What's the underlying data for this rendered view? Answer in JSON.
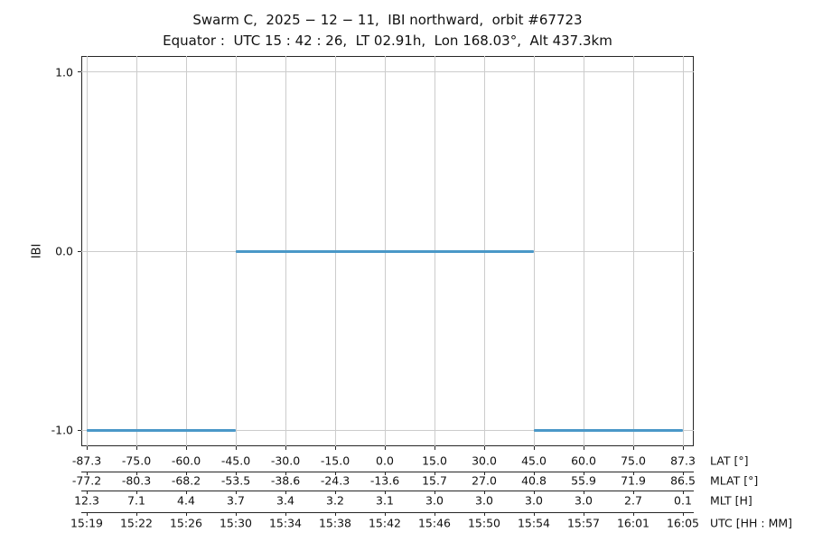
{
  "colors": {
    "line": "#4a98c8",
    "grid": "#cccccc",
    "spine": "#262626",
    "text": "#111111",
    "background": "#ffffff"
  },
  "chart_data": {
    "type": "line",
    "title": "Swarm C,  2025 − 12 − 11,  IBI northward,  orbit #67723",
    "subtitle": "Equator :  UTC 15 : 42 : 26,  LT 02.91h,  Lon 168.03°,  Alt 437.3km",
    "ylabel": "IBI",
    "ylim": [
      -1.1,
      1.1
    ],
    "grid": true,
    "legend": false,
    "yticks": [
      {
        "label": "1.0",
        "value": 1
      },
      {
        "label": "0.0",
        "value": 0
      },
      {
        "label": "-1.0",
        "value": -1
      }
    ],
    "x_axis_rows": [
      {
        "name": "LAT [°]",
        "ticks": [
          "-87.3",
          "-75.0",
          "-60.0",
          "-45.0",
          "-30.0",
          "-15.0",
          "0.0",
          "15.0",
          "30.0",
          "45.0",
          "60.0",
          "75.0",
          "87.3"
        ]
      },
      {
        "name": "MLAT [°]",
        "ticks": [
          "-77.2",
          "-80.3",
          "-68.2",
          "-53.5",
          "-38.6",
          "-24.3",
          "-13.6",
          "15.7",
          "27.0",
          "40.8",
          "55.9",
          "71.9",
          "86.5"
        ]
      },
      {
        "name": "MLT [H]",
        "ticks": [
          "12.3",
          "7.1",
          "4.4",
          "3.7",
          "3.4",
          "3.2",
          "3.1",
          "3.0",
          "3.0",
          "3.0",
          "3.0",
          "2.7",
          "0.1"
        ]
      },
      {
        "name": "UTC [HH : MM]",
        "ticks": [
          "15:19",
          "15:22",
          "15:26",
          "15:30",
          "15:34",
          "15:38",
          "15:42",
          "15:46",
          "15:50",
          "15:54",
          "15:57",
          "16:01",
          "16:05"
        ]
      }
    ],
    "series": [
      {
        "name": "IBI",
        "color": "#4a98c8",
        "segments": [
          {
            "value": -1,
            "from_tick": 0,
            "to_tick": 3,
            "from_utc": "15:19",
            "to_utc": "15:30",
            "from_lat": -87.3,
            "to_lat": -45.0
          },
          {
            "value": 0,
            "from_tick": 3,
            "to_tick": 9,
            "from_utc": "15:30",
            "to_utc": "15:54",
            "from_lat": -45.0,
            "to_lat": 45.0
          },
          {
            "value": -1,
            "from_tick": 9,
            "to_tick": 12,
            "from_utc": "15:54",
            "to_utc": "16:05",
            "from_lat": 45.0,
            "to_lat": 87.3
          }
        ]
      }
    ]
  }
}
